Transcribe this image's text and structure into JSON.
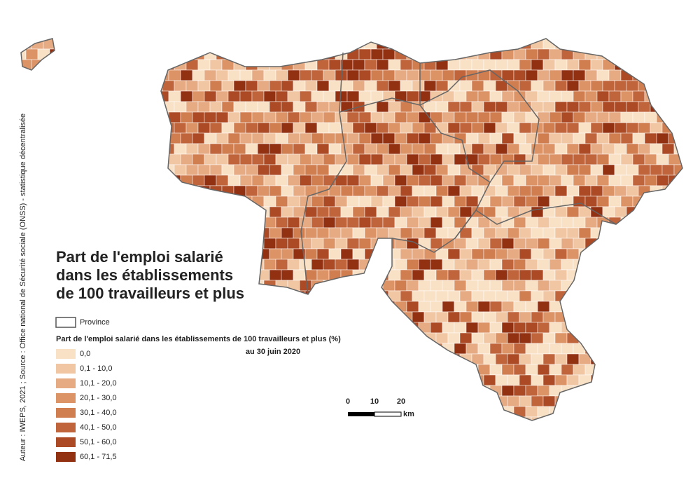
{
  "title": [
    "Part de l'emploi salarié",
    "dans les établissements",
    "de 100 travailleurs et plus"
  ],
  "legend": {
    "province": "Province",
    "heading": "Part de l'emploi salarié dans les établissements de 100 travailleurs et plus (%)",
    "subheading": "au 30 juin 2020",
    "classes": [
      {
        "label": "0,0",
        "color": "#f9e1c6"
      },
      {
        "label": "0,1 - 10,0",
        "color": "#f1c6a3"
      },
      {
        "label": "10,1 - 20,0",
        "color": "#e6ab83"
      },
      {
        "label": "20,1 - 30,0",
        "color": "#dc9467"
      },
      {
        "label": "30,1 - 40,0",
        "color": "#d07d50"
      },
      {
        "label": "40,1 - 50,0",
        "color": "#c0643b"
      },
      {
        "label": "50,1 - 60,0",
        "color": "#ab4a24"
      },
      {
        "label": "60,1 - 71,5",
        "color": "#923012"
      }
    ]
  },
  "scale": {
    "ticks": [
      "0",
      "10",
      "20"
    ],
    "unit": "km"
  },
  "source": "Auteur : IWEPS, 2021 ; Source : Office national de Sécurité sociale (ONSS) - statistique décentralisée"
}
